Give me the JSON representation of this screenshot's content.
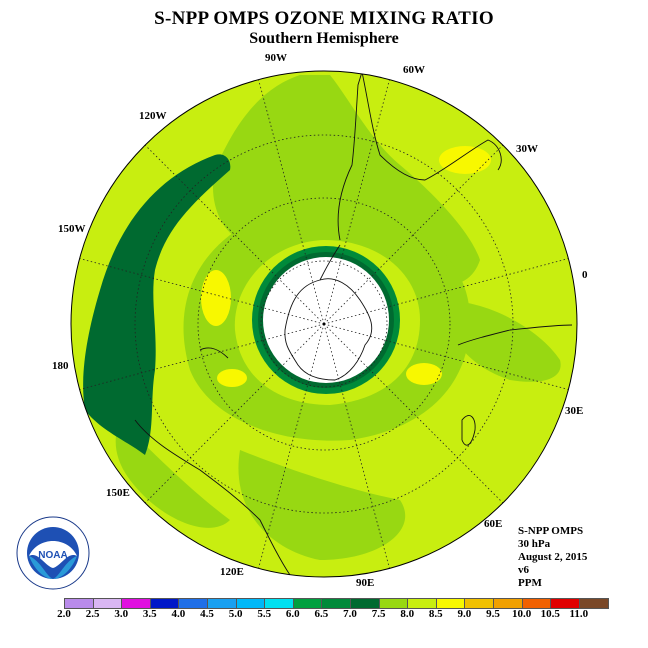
{
  "title": "S-NPP OMPS OZONE MIXING RATIO",
  "subtitle": "Southern Hemisphere",
  "longitude_labels": [
    "90W",
    "60W",
    "30W",
    "0",
    "30E",
    "60E",
    "90E",
    "120E",
    "150E",
    "180",
    "150W",
    "120W"
  ],
  "info": {
    "instrument": "S-NPP OMPS",
    "pressure": "30 hPa",
    "date": "August 2, 2015",
    "version": "v6",
    "units": "PPM"
  },
  "logo": {
    "text": "NOAA",
    "icon": "noaa-logo"
  },
  "colorbar": {
    "labels": [
      "2.0",
      "2.5",
      "3.0",
      "3.5",
      "4.0",
      "4.5",
      "5.0",
      "5.5",
      "6.0",
      "6.5",
      "7.0",
      "7.5",
      "8.0",
      "8.5",
      "9.0",
      "9.5",
      "10.0",
      "10.5",
      "11.0"
    ],
    "colors": [
      "#b98bea",
      "#d9b6f3",
      "#e010e0",
      "#0018c8",
      "#1f6fe8",
      "#1aa0f0",
      "#00b8f8",
      "#00e0f0",
      "#00a040",
      "#008a3a",
      "#006a30",
      "#98d812",
      "#c8ee10",
      "#f8f800",
      "#f0c000",
      "#f0a000",
      "#f06000",
      "#e00000",
      "#7a4828"
    ]
  },
  "map_colors": {
    "background": "#c8ee10",
    "band_7_5": "#98d812",
    "band_6_5": "#008a3a",
    "band_7_0": "#006a30",
    "band_8_5": "#f8f800",
    "no_data": "#ffffff"
  }
}
